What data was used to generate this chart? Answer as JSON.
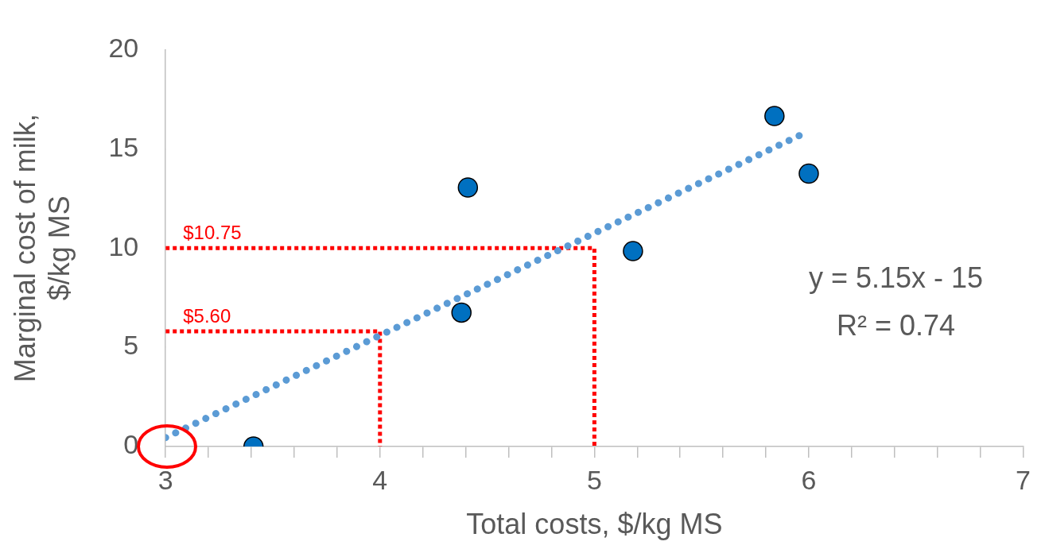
{
  "chart_data": {
    "type": "scatter",
    "xlabel": "Total costs, $/kg MS",
    "ylabel": "Marginal cost of milk, $/kg MS",
    "series": [
      {
        "marker": "circle",
        "color": "#0070c0",
        "x": [
          3.41,
          4.38,
          4.41,
          5.18,
          5.84,
          6.0
        ],
        "values": [
          0,
          6.75,
          13.05,
          9.85,
          16.65,
          13.75
        ]
      },
      {
        "type": "line",
        "marker": "none",
        "color": "#5b9bd5",
        "line_style": "dotted",
        "x": [
          3,
          5.96
        ],
        "values": [
          0.45,
          15.69
        ]
      },
      {
        "type": "line",
        "marker": "none",
        "color": "#ff0000",
        "line_style": "dotted",
        "x": [
          3,
          5,
          5
        ],
        "values": [
          10,
          10,
          0
        ]
      },
      {
        "type": "line",
        "marker": "none",
        "color": "#ff0000",
        "line_style": "dotted",
        "x": [
          3,
          4,
          4
        ],
        "values": [
          5.8,
          5.8,
          0
        ]
      }
    ],
    "xlim": [
      3,
      7
    ],
    "ylim": [
      0,
      20
    ],
    "xticks": [
      3,
      {
        "value": 3.2,
        "label": null
      },
      {
        "value": 3.4,
        "label": null
      },
      {
        "value": 3.6,
        "label": null
      },
      {
        "value": 3.8,
        "label": null
      },
      4,
      {
        "value": 4.2,
        "label": null
      },
      {
        "value": 4.4,
        "label": null
      },
      {
        "value": 4.6,
        "label": null
      },
      {
        "value": 4.8,
        "label": null
      },
      5,
      {
        "value": 5.2,
        "label": null
      },
      {
        "value": 5.4,
        "label": null
      },
      {
        "value": 5.6,
        "label": null
      },
      {
        "value": 5.8,
        "label": null
      },
      6,
      {
        "value": 6.2,
        "label": null
      },
      {
        "value": 6.4,
        "label": null
      },
      {
        "value": 6.6,
        "label": null
      },
      {
        "value": 6.8,
        "label": null
      },
      7
    ],
    "yticks": [
      0,
      5,
      10,
      15,
      20
    ],
    "grid": false,
    "legend": false,
    "annotations": [
      {
        "text": "$10.75",
        "x": 3,
        "y": 10
      },
      {
        "text": "$5.60",
        "x": 3,
        "y": 5.8
      },
      "y = 5.15x - 15",
      "R² = 0.74"
    ]
  }
}
